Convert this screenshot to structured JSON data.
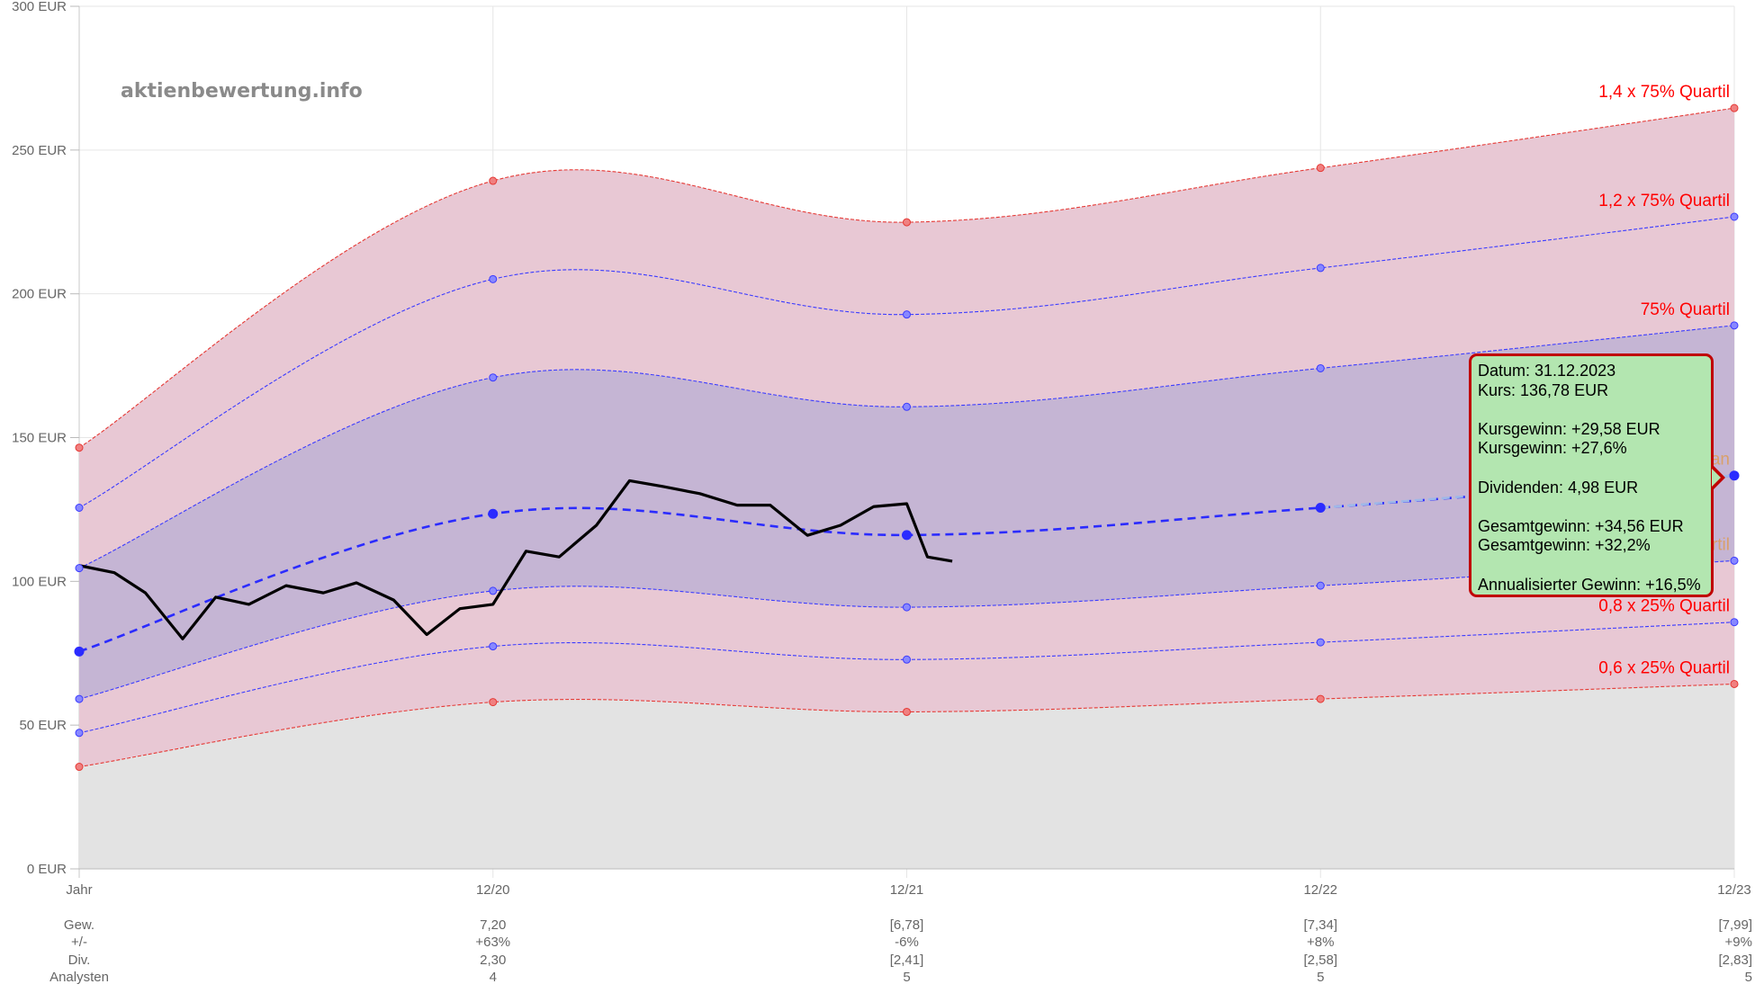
{
  "watermark": "aktienbewertung.info",
  "chart_data": {
    "type": "line",
    "y_unit": "EUR",
    "ylim": [
      0,
      300
    ],
    "y_ticks": [
      "0 EUR",
      "50 EUR",
      "100 EUR",
      "150 EUR",
      "200 EUR",
      "250 EUR",
      "300 EUR"
    ],
    "categories": [
      "Jahr",
      "12/20",
      "12/21",
      "12/22",
      "12/23"
    ],
    "grid": true,
    "series": [
      {
        "name": "1,4 x 75% Quartil",
        "values": [
          146.5,
          239.3,
          224.9,
          243.8,
          264.6
        ],
        "color": "#e53935",
        "label_color": "#ff0000"
      },
      {
        "name": "1,2 x 75% Quartil",
        "values": [
          125.6,
          205.1,
          192.8,
          209.0,
          226.8
        ],
        "color": "#3b3bff",
        "label_color": "#ff0000"
      },
      {
        "name": "75% Quartil",
        "values": [
          104.6,
          170.9,
          160.7,
          174.1,
          189.0
        ],
        "color": "#3b3bff",
        "label_color": "#ff0000"
      },
      {
        "name": "Median",
        "values": [
          75.6,
          123.5,
          116.1,
          125.6,
          136.8
        ],
        "color": "#2b2bff",
        "label_color": "#d9a06a"
      },
      {
        "name": "25% Quartil",
        "values": [
          59.1,
          96.7,
          91.0,
          98.5,
          107.2
        ],
        "color": "#3b3bff",
        "label_color": "#d9a06a"
      },
      {
        "name": "0,8 x 25% Quartil",
        "values": [
          47.3,
          77.4,
          72.8,
          78.8,
          85.8
        ],
        "color": "#3b3bff",
        "label_color": "#ff0000"
      },
      {
        "name": "0,6 x 25% Quartil",
        "values": [
          35.5,
          58.0,
          54.6,
          59.1,
          64.3
        ],
        "color": "#e53935",
        "label_color": "#ff0000"
      }
    ],
    "price": {
      "x": [
        0.0,
        0.085,
        0.16,
        0.25,
        0.33,
        0.41,
        0.5,
        0.59,
        0.67,
        0.76,
        0.84,
        0.92,
        1.0,
        1.08,
        1.16,
        1.25,
        1.33,
        1.41,
        1.5,
        1.59,
        1.67,
        1.76,
        1.84,
        1.92,
        2.0,
        2.05,
        2.11
      ],
      "y": [
        105.5,
        103.0,
        96.0,
        80.0,
        94.5,
        92.0,
        98.5,
        96.0,
        99.5,
        93.5,
        81.5,
        90.5,
        92.0,
        110.5,
        108.5,
        119.5,
        135.0,
        133.0,
        130.5,
        126.5,
        126.5,
        116.0,
        119.5,
        126.0,
        127.0,
        108.5,
        107.0
      ]
    },
    "footer_rows": [
      {
        "label": "Gew.",
        "values": [
          "7,20",
          "[6,78]",
          "[7,34]",
          "[7,99]"
        ]
      },
      {
        "label": "+/-",
        "values": [
          "+63%",
          "-6%",
          "+8%",
          "+9%"
        ]
      },
      {
        "label": "Div.",
        "values": [
          "2,30",
          "[2,41]",
          "[2,58]",
          "[2,83]"
        ]
      },
      {
        "label": "Analysten",
        "values": [
          "4",
          "5",
          "5",
          "5"
        ]
      }
    ]
  },
  "tooltip": {
    "date": "Datum: 31.12.2023",
    "price": "Kurs: 136,78 EUR",
    "gain_eur": "Kursgewinn: +29,58 EUR",
    "gain_pct": "Kursgewinn: +27,6%",
    "dividends": "Dividenden: 4,98 EUR",
    "total_eur": "Gesamtgewinn: +34,56 EUR",
    "total_pct": "Gesamtgewinn: +32,2%",
    "annualized": "Annualisierter Gewinn: +16,5%"
  }
}
